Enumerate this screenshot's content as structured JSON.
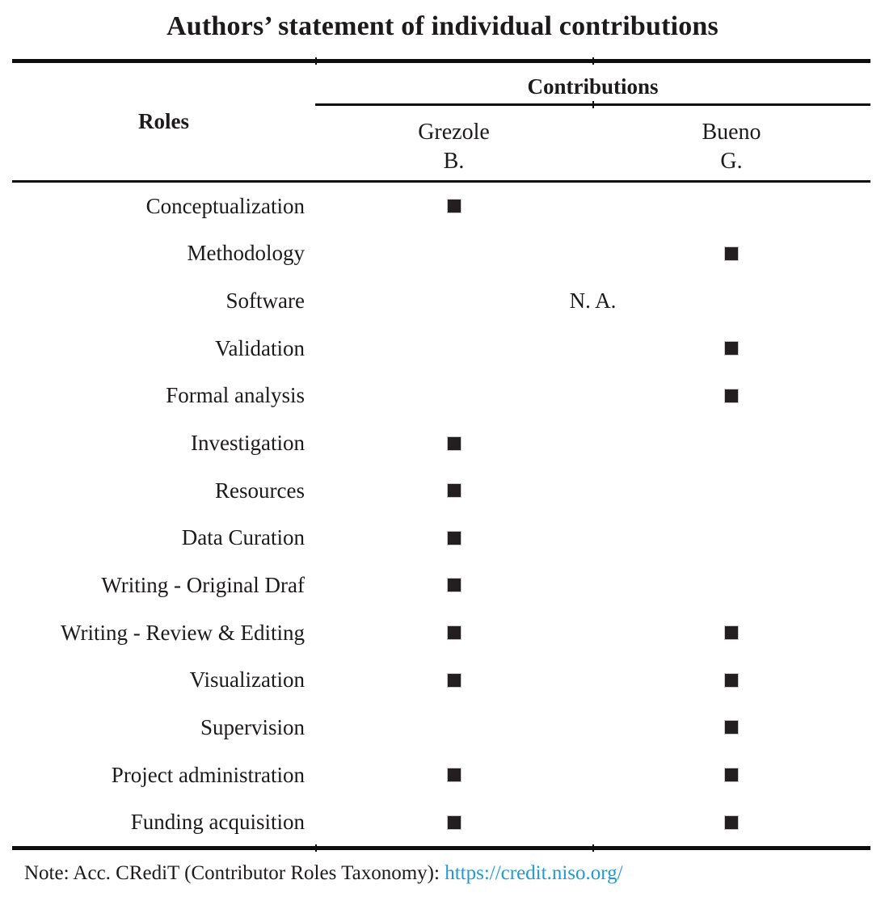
{
  "title": "Authors’ statement of individual contributions",
  "table": {
    "roles_header": "Roles",
    "contributions_header": "Contributions",
    "authors": [
      {
        "surname": "Grezole",
        "initial": "B."
      },
      {
        "surname": "Bueno",
        "initial": "G."
      }
    ],
    "marker_glyph": "black-square",
    "rows": [
      {
        "role": "Conceptualization",
        "grezole": true,
        "bueno": false
      },
      {
        "role": "Methodology",
        "grezole": false,
        "bueno": true
      },
      {
        "role": "Software",
        "merged_value": "N. A."
      },
      {
        "role": "Validation",
        "grezole": false,
        "bueno": true
      },
      {
        "role": "Formal analysis",
        "grezole": false,
        "bueno": true
      },
      {
        "role": "Investigation",
        "grezole": true,
        "bueno": false
      },
      {
        "role": "Resources",
        "grezole": true,
        "bueno": false
      },
      {
        "role": "Data Curation",
        "grezole": true,
        "bueno": false
      },
      {
        "role": "Writing - Original Draf",
        "grezole": true,
        "bueno": false
      },
      {
        "role": "Writing - Review & Editing",
        "grezole": true,
        "bueno": true
      },
      {
        "role": "Visualization",
        "grezole": true,
        "bueno": true
      },
      {
        "role": "Supervision",
        "grezole": false,
        "bueno": true
      },
      {
        "role": "Project administration",
        "grezole": true,
        "bueno": true
      },
      {
        "role": "Funding acquisition",
        "grezole": true,
        "bueno": true
      }
    ]
  },
  "note": {
    "prefix": "Note: Acc. CRediT (Contributor Roles Taxonomy): ",
    "link_text": "https://credit.niso.org/"
  },
  "colors": {
    "text": "#1d1a1b",
    "rule": "#0e0e0e",
    "marker": "#231f20",
    "link": "#1f9ad6"
  }
}
